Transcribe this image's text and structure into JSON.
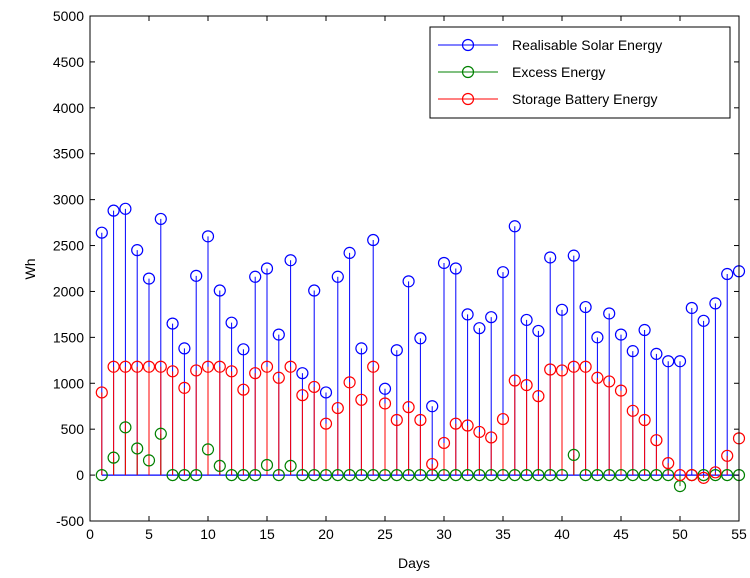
{
  "chart_data": {
    "type": "stem",
    "xlabel": "Days",
    "ylabel": "Wh",
    "xlim": [
      0,
      55
    ],
    "ylim": [
      -500,
      5000
    ],
    "xticks": [
      0,
      5,
      10,
      15,
      20,
      25,
      30,
      35,
      40,
      45,
      50,
      55
    ],
    "yticks": [
      -500,
      0,
      500,
      1000,
      1500,
      2000,
      2500,
      3000,
      3500,
      4000,
      4500,
      5000
    ],
    "legend_position": "top-right",
    "grid": false,
    "x": [
      1,
      2,
      3,
      4,
      5,
      6,
      7,
      8,
      9,
      10,
      11,
      12,
      13,
      14,
      15,
      16,
      17,
      18,
      19,
      20,
      21,
      22,
      23,
      24,
      25,
      26,
      27,
      28,
      29,
      30,
      31,
      32,
      33,
      34,
      35,
      36,
      37,
      38,
      39,
      40,
      41,
      42,
      43,
      44,
      45,
      46,
      47,
      48,
      49,
      50,
      51,
      52,
      53,
      54,
      55
    ],
    "series": [
      {
        "name": "Realisable Solar Energy",
        "color": "#0000ff",
        "values": [
          2640,
          2880,
          2900,
          2450,
          2140,
          2790,
          1650,
          1380,
          2170,
          2600,
          2010,
          1660,
          1370,
          2160,
          2250,
          1530,
          2340,
          1110,
          2010,
          900,
          2160,
          2420,
          1380,
          2560,
          940,
          1360,
          2110,
          1490,
          750,
          2310,
          2250,
          1750,
          1600,
          1720,
          2210,
          2710,
          1690,
          1570,
          2370,
          1800,
          2390,
          1830,
          1500,
          1760,
          1530,
          1350,
          1580,
          1320,
          1240,
          1240,
          1820,
          1680,
          1870,
          2190,
          2220
        ]
      },
      {
        "name": "Excess Energy",
        "color": "#008000",
        "values": [
          0,
          190,
          520,
          290,
          160,
          450,
          0,
          0,
          0,
          280,
          100,
          0,
          0,
          0,
          110,
          0,
          100,
          0,
          0,
          0,
          0,
          0,
          0,
          0,
          0,
          0,
          0,
          0,
          0,
          0,
          0,
          0,
          0,
          0,
          0,
          0,
          0,
          0,
          0,
          0,
          220,
          0,
          0,
          0,
          0,
          0,
          0,
          0,
          0,
          -120,
          0,
          0,
          0,
          0,
          0
        ]
      },
      {
        "name": "Storage Battery Energy",
        "color": "#ff0000",
        "values": [
          900,
          1180,
          1180,
          1180,
          1180,
          1180,
          1130,
          950,
          1140,
          1180,
          1180,
          1130,
          930,
          1110,
          1180,
          1060,
          1180,
          870,
          960,
          560,
          730,
          1010,
          820,
          1180,
          780,
          600,
          740,
          600,
          120,
          350,
          560,
          540,
          470,
          410,
          610,
          1030,
          980,
          860,
          1150,
          1140,
          1180,
          1180,
          1060,
          1020,
          920,
          700,
          600,
          380,
          130,
          0,
          0,
          -30,
          30,
          210,
          400
        ]
      }
    ]
  }
}
